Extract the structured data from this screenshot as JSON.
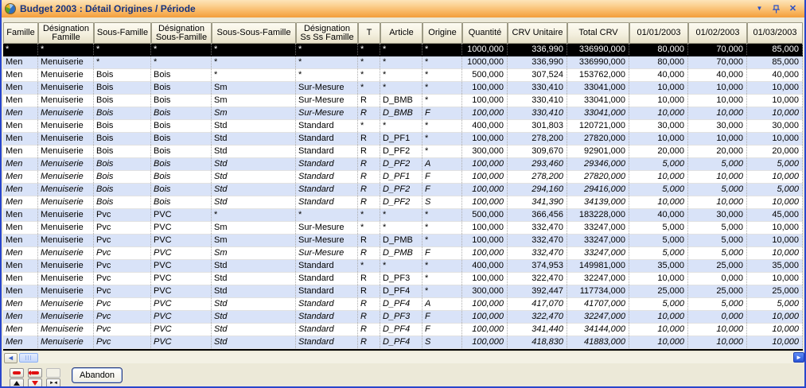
{
  "window": {
    "title": "Budget 2003 : Détail Origines / Période",
    "controls": {
      "dropdown": "▼",
      "close": "✕"
    }
  },
  "colors": {
    "titlebar_top": "#fde4ba",
    "titlebar_bottom": "#f39d3b",
    "title_text": "#16337f",
    "row_alt": "#d9e3f8",
    "selected_row_bg": "#000000",
    "selected_row_text": "#ffffff",
    "header_bg": "#f4f0df",
    "window_border": "#2946cc",
    "nav_red": "#e01010"
  },
  "grid": {
    "columns": [
      {
        "label": "Famille",
        "align": "left"
      },
      {
        "label": "Désignation Famille",
        "align": "left"
      },
      {
        "label": "Sous-Famille",
        "align": "left"
      },
      {
        "label": "Désignation Sous-Famille",
        "align": "left"
      },
      {
        "label": "Sous-Sous-Famille",
        "align": "left"
      },
      {
        "label": "Désignation Ss Ss Famille",
        "align": "left"
      },
      {
        "label": "T",
        "align": "left"
      },
      {
        "label": "Article",
        "align": "left"
      },
      {
        "label": "Origine",
        "align": "left"
      },
      {
        "label": "Quantité",
        "align": "right"
      },
      {
        "label": "CRV Unitaire",
        "align": "right"
      },
      {
        "label": "Total CRV",
        "align": "right"
      },
      {
        "label": "01/01/2003",
        "align": "right"
      },
      {
        "label": "01/02/2003",
        "align": "right"
      },
      {
        "label": "01/03/2003",
        "align": "right"
      }
    ],
    "rows": [
      {
        "selected": true,
        "italic": false,
        "cells": [
          "*",
          "*",
          "*",
          "*",
          "*",
          "*",
          "*",
          "*",
          "*",
          "1000,000",
          "336,990",
          "336990,000",
          "80,000",
          "70,000",
          "85,000"
        ]
      },
      {
        "selected": false,
        "italic": false,
        "cells": [
          "Men",
          "Menuiserie",
          "*",
          "*",
          "*",
          "*",
          "*",
          "*",
          "*",
          "1000,000",
          "336,990",
          "336990,000",
          "80,000",
          "70,000",
          "85,000"
        ]
      },
      {
        "selected": false,
        "italic": false,
        "cells": [
          "Men",
          "Menuiserie",
          "Bois",
          "Bois",
          "*",
          "*",
          "*",
          "*",
          "*",
          "500,000",
          "307,524",
          "153762,000",
          "40,000",
          "40,000",
          "40,000"
        ]
      },
      {
        "selected": false,
        "italic": false,
        "cells": [
          "Men",
          "Menuiserie",
          "Bois",
          "Bois",
          "Sm",
          "Sur-Mesure",
          "*",
          "*",
          "*",
          "100,000",
          "330,410",
          "33041,000",
          "10,000",
          "10,000",
          "10,000"
        ]
      },
      {
        "selected": false,
        "italic": false,
        "cells": [
          "Men",
          "Menuiserie",
          "Bois",
          "Bois",
          "Sm",
          "Sur-Mesure",
          "R",
          "D_BMB",
          "*",
          "100,000",
          "330,410",
          "33041,000",
          "10,000",
          "10,000",
          "10,000"
        ]
      },
      {
        "selected": false,
        "italic": true,
        "cells": [
          "Men",
          "Menuiserie",
          "Bois",
          "Bois",
          "Sm",
          "Sur-Mesure",
          "R",
          "D_BMB",
          "F",
          "100,000",
          "330,410",
          "33041,000",
          "10,000",
          "10,000",
          "10,000"
        ]
      },
      {
        "selected": false,
        "italic": false,
        "cells": [
          "Men",
          "Menuiserie",
          "Bois",
          "Bois",
          "Std",
          "Standard",
          "*",
          "*",
          "*",
          "400,000",
          "301,803",
          "120721,000",
          "30,000",
          "30,000",
          "30,000"
        ]
      },
      {
        "selected": false,
        "italic": false,
        "cells": [
          "Men",
          "Menuiserie",
          "Bois",
          "Bois",
          "Std",
          "Standard",
          "R",
          "D_PF1",
          "*",
          "100,000",
          "278,200",
          "27820,000",
          "10,000",
          "10,000",
          "10,000"
        ]
      },
      {
        "selected": false,
        "italic": false,
        "cells": [
          "Men",
          "Menuiserie",
          "Bois",
          "Bois",
          "Std",
          "Standard",
          "R",
          "D_PF2",
          "*",
          "300,000",
          "309,670",
          "92901,000",
          "20,000",
          "20,000",
          "20,000"
        ]
      },
      {
        "selected": false,
        "italic": true,
        "cells": [
          "Men",
          "Menuiserie",
          "Bois",
          "Bois",
          "Std",
          "Standard",
          "R",
          "D_PF2",
          "A",
          "100,000",
          "293,460",
          "29346,000",
          "5,000",
          "5,000",
          "5,000"
        ]
      },
      {
        "selected": false,
        "italic": true,
        "cells": [
          "Men",
          "Menuiserie",
          "Bois",
          "Bois",
          "Std",
          "Standard",
          "R",
          "D_PF1",
          "F",
          "100,000",
          "278,200",
          "27820,000",
          "10,000",
          "10,000",
          "10,000"
        ]
      },
      {
        "selected": false,
        "italic": true,
        "cells": [
          "Men",
          "Menuiserie",
          "Bois",
          "Bois",
          "Std",
          "Standard",
          "R",
          "D_PF2",
          "F",
          "100,000",
          "294,160",
          "29416,000",
          "5,000",
          "5,000",
          "5,000"
        ]
      },
      {
        "selected": false,
        "italic": true,
        "cells": [
          "Men",
          "Menuiserie",
          "Bois",
          "Bois",
          "Std",
          "Standard",
          "R",
          "D_PF2",
          "S",
          "100,000",
          "341,390",
          "34139,000",
          "10,000",
          "10,000",
          "10,000"
        ]
      },
      {
        "selected": false,
        "italic": false,
        "cells": [
          "Men",
          "Menuiserie",
          "Pvc",
          "PVC",
          "*",
          "*",
          "*",
          "*",
          "*",
          "500,000",
          "366,456",
          "183228,000",
          "40,000",
          "30,000",
          "45,000"
        ]
      },
      {
        "selected": false,
        "italic": false,
        "cells": [
          "Men",
          "Menuiserie",
          "Pvc",
          "PVC",
          "Sm",
          "Sur-Mesure",
          "*",
          "*",
          "*",
          "100,000",
          "332,470",
          "33247,000",
          "5,000",
          "5,000",
          "10,000"
        ]
      },
      {
        "selected": false,
        "italic": false,
        "cells": [
          "Men",
          "Menuiserie",
          "Pvc",
          "PVC",
          "Sm",
          "Sur-Mesure",
          "R",
          "D_PMB",
          "*",
          "100,000",
          "332,470",
          "33247,000",
          "5,000",
          "5,000",
          "10,000"
        ]
      },
      {
        "selected": false,
        "italic": true,
        "cells": [
          "Men",
          "Menuiserie",
          "Pvc",
          "PVC",
          "Sm",
          "Sur-Mesure",
          "R",
          "D_PMB",
          "F",
          "100,000",
          "332,470",
          "33247,000",
          "5,000",
          "5,000",
          "10,000"
        ]
      },
      {
        "selected": false,
        "italic": false,
        "cells": [
          "Men",
          "Menuiserie",
          "Pvc",
          "PVC",
          "Std",
          "Standard",
          "*",
          "*",
          "*",
          "400,000",
          "374,953",
          "149981,000",
          "35,000",
          "25,000",
          "35,000"
        ]
      },
      {
        "selected": false,
        "italic": false,
        "cells": [
          "Men",
          "Menuiserie",
          "Pvc",
          "PVC",
          "Std",
          "Standard",
          "R",
          "D_PF3",
          "*",
          "100,000",
          "322,470",
          "32247,000",
          "10,000",
          "0,000",
          "10,000"
        ]
      },
      {
        "selected": false,
        "italic": false,
        "cells": [
          "Men",
          "Menuiserie",
          "Pvc",
          "PVC",
          "Std",
          "Standard",
          "R",
          "D_PF4",
          "*",
          "300,000",
          "392,447",
          "117734,000",
          "25,000",
          "25,000",
          "25,000"
        ]
      },
      {
        "selected": false,
        "italic": true,
        "cells": [
          "Men",
          "Menuiserie",
          "Pvc",
          "PVC",
          "Std",
          "Standard",
          "R",
          "D_PF4",
          "A",
          "100,000",
          "417,070",
          "41707,000",
          "5,000",
          "5,000",
          "5,000"
        ]
      },
      {
        "selected": false,
        "italic": true,
        "cells": [
          "Men",
          "Menuiserie",
          "Pvc",
          "PVC",
          "Std",
          "Standard",
          "R",
          "D_PF3",
          "F",
          "100,000",
          "322,470",
          "32247,000",
          "10,000",
          "0,000",
          "10,000"
        ]
      },
      {
        "selected": false,
        "italic": true,
        "cells": [
          "Men",
          "Menuiserie",
          "Pvc",
          "PVC",
          "Std",
          "Standard",
          "R",
          "D_PF4",
          "F",
          "100,000",
          "341,440",
          "34144,000",
          "10,000",
          "10,000",
          "10,000"
        ]
      },
      {
        "selected": false,
        "italic": true,
        "cells": [
          "Men",
          "Menuiserie",
          "Pvc",
          "PVC",
          "Std",
          "Standard",
          "R",
          "D_PF4",
          "S",
          "100,000",
          "418,830",
          "41883,000",
          "10,000",
          "10,000",
          "10,000"
        ]
      }
    ]
  },
  "scrollbar": {
    "left_arrow": "◄",
    "right_arrow": "►"
  },
  "footer": {
    "abandon_label": "Abandon",
    "nav_icons": [
      "first-record-icon",
      "prev-record-icon",
      "blank",
      "up-arrow-icon",
      "down-arrow-icon",
      "bookmark-icon"
    ]
  }
}
